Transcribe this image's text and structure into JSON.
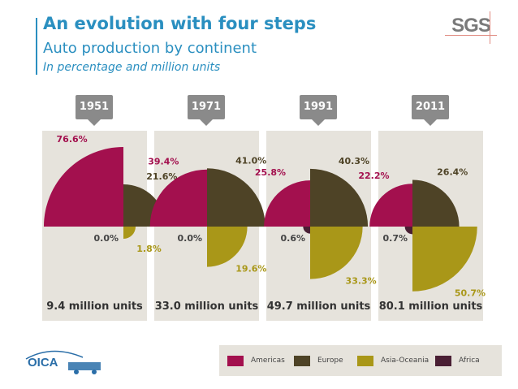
{
  "header": {
    "title": "An evolution with four steps",
    "subtitle": "Auto production by continent",
    "unit_note": "In percentage and million units",
    "logo_text": "SGS"
  },
  "footer": {
    "logo_text": "OICA"
  },
  "colors": {
    "Americas": "#a3104e",
    "Europe": "#4e4326",
    "Asia-Oceania": "#a99718",
    "Africa": "#4a1f34",
    "accent": "#2a8fc0"
  },
  "chart_data": {
    "type": "pie",
    "legend_position": "bottom-right",
    "series_names": [
      "Americas",
      "Europe",
      "Asia-Oceania",
      "Africa"
    ],
    "panels": [
      {
        "year": "1951",
        "total_label": "9.4 million units",
        "values": {
          "Americas": 76.6,
          "Europe": 21.6,
          "Asia-Oceania": 1.8,
          "Africa": 0.0
        },
        "labels": {
          "Americas": "76.6%",
          "Europe": "21.6%",
          "Asia-Oceania": "1.8%",
          "Africa": "0.0%"
        }
      },
      {
        "year": "1971",
        "total_label": "33.0 million units",
        "values": {
          "Americas": 39.4,
          "Europe": 41.0,
          "Asia-Oceania": 19.6,
          "Africa": 0.0
        },
        "labels": {
          "Americas": "39.4%",
          "Europe": "41.0%",
          "Asia-Oceania": "19.6%",
          "Africa": "0.0%"
        }
      },
      {
        "year": "1991",
        "total_label": "49.7 million units",
        "values": {
          "Americas": 25.8,
          "Europe": 40.3,
          "Asia-Oceania": 33.3,
          "Africa": 0.6
        },
        "labels": {
          "Americas": "25.8%",
          "Europe": "40.3%",
          "Asia-Oceania": "33.3%",
          "Africa": "0.6%"
        }
      },
      {
        "year": "2011",
        "total_label": "80.1 million units",
        "values": {
          "Americas": 22.2,
          "Europe": 26.4,
          "Asia-Oceania": 50.7,
          "Africa": 0.7
        },
        "labels": {
          "Americas": "22.2%",
          "Europe": "26.4%",
          "Asia-Oceania": "50.7%",
          "Africa": "0.7%"
        }
      }
    ]
  }
}
